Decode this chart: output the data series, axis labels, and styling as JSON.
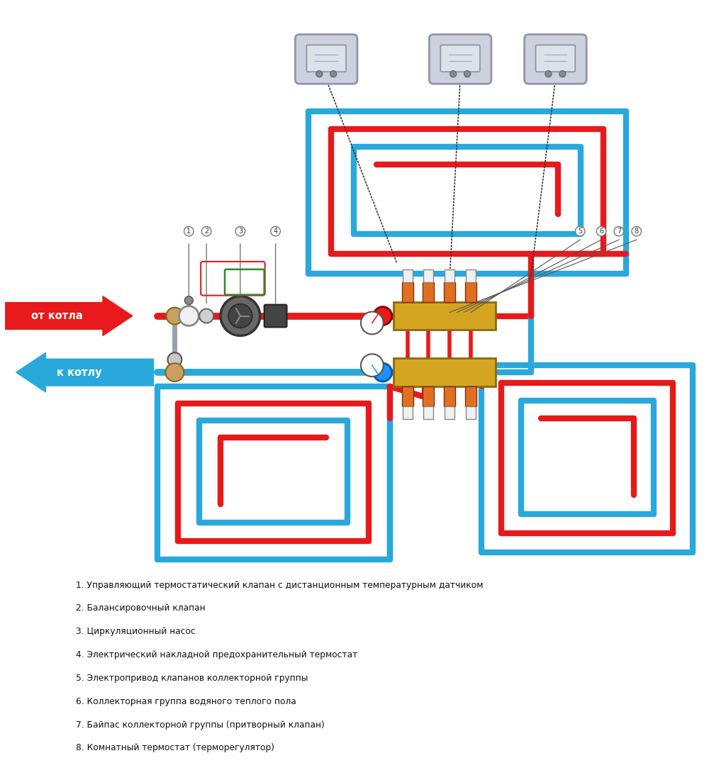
{
  "bg_color": "#ffffff",
  "red_color": "#e8191a",
  "blue_color": "#29a8dc",
  "gold_color": "#d4a520",
  "green_color": "#2a8a2a",
  "gray_color": "#9aa0b0",
  "dark_gray": "#555555",
  "arrow_from_text": "от котла",
  "arrow_to_text": "к котлу",
  "legend_items": [
    "1. Управляющий термостатический клапан с дистанционным температурным датчиком",
    "2. Балансировочный клапан",
    "3. Циркуляционный насос",
    "4. Электрический накладной предохранительный термостат",
    "5. Электропривод клапанов коллекторной группы",
    "6. Коллекторная группа водяного теплого пола",
    "7. Байпас коллекторной группы (притворный клапан)",
    "8. Комнатный термостат (терморегулятор)"
  ],
  "figsize": [
    10.0,
    11.0
  ],
  "dpi": 100
}
